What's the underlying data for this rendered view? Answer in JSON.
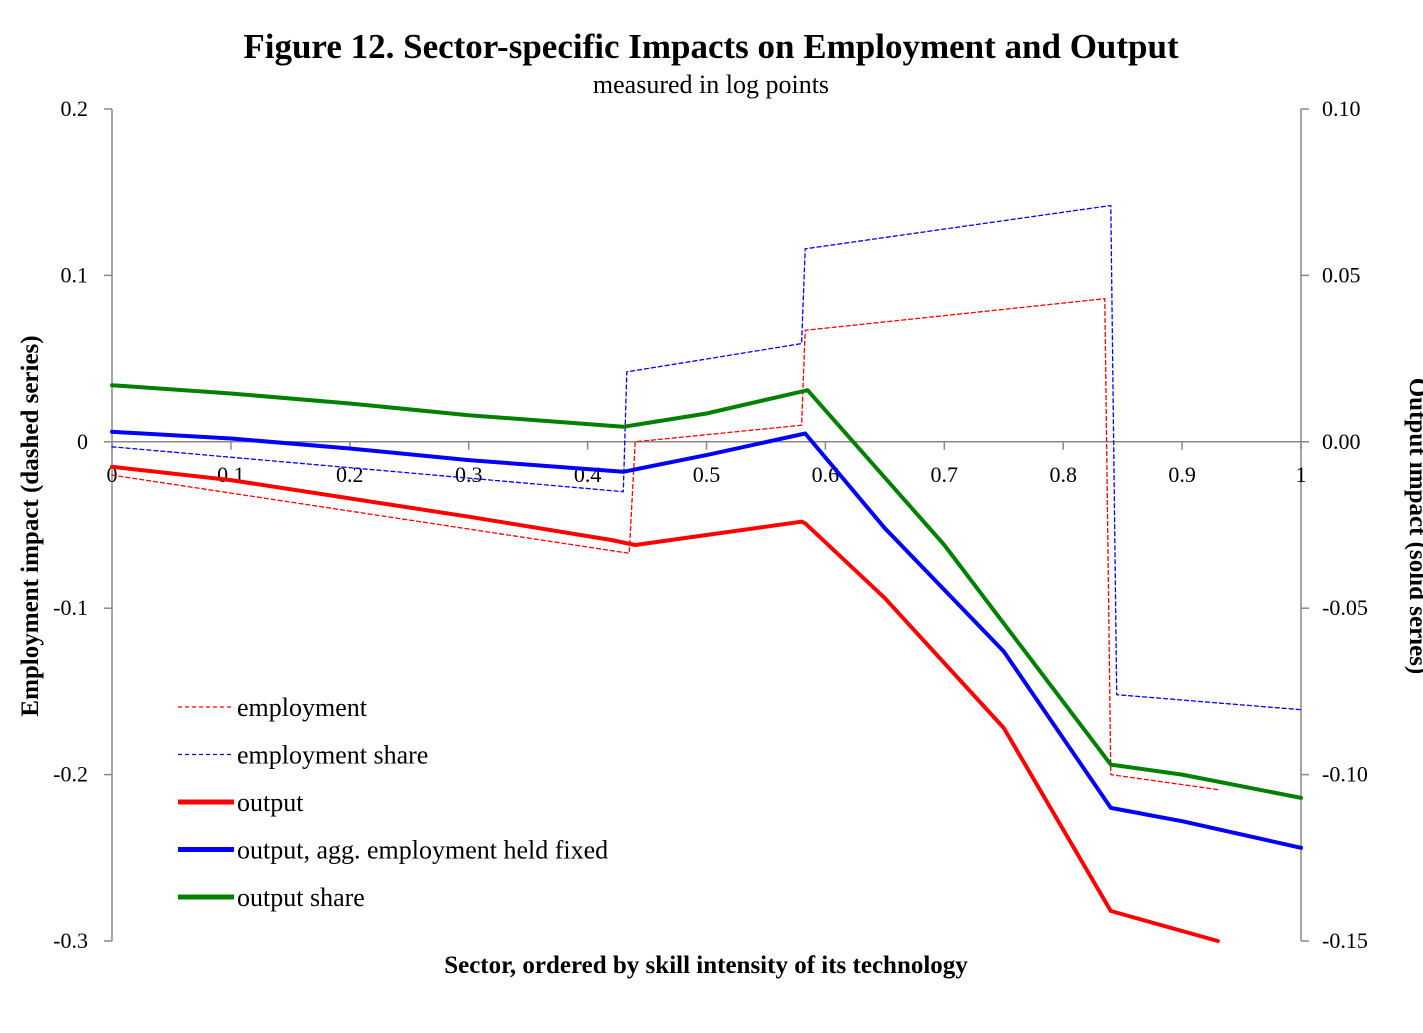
{
  "chart_data": {
    "type": "line",
    "title": "Figure 12.  Sector-specific Impacts on Employment and Output",
    "subtitle": "measured in log points",
    "xlabel": "Sector, ordered by skill intensity of its technology",
    "ylabel_left": "Employment impact (dashed series)",
    "ylabel_right": "Output impact (solid series)",
    "xlim": [
      0,
      1
    ],
    "ylim_left": [
      -0.3,
      0.2
    ],
    "ylim_right": [
      -0.15,
      0.1
    ],
    "x_ticks": [
      "0",
      "0.1",
      "0.2",
      "0.3",
      "0.4",
      "0.5",
      "0.6",
      "0.7",
      "0.8",
      "0.9",
      "1"
    ],
    "y_left_ticks": [
      "-0.3",
      "-0.2",
      "-0.1",
      "0",
      "0.1",
      "0.2"
    ],
    "y_right_ticks": [
      "-0.15",
      "-0.10",
      "-0.05",
      "0.00",
      "0.05",
      "0.10"
    ],
    "legend_position": "bottom-left",
    "grid": false,
    "series": [
      {
        "name": "employment",
        "axis": "left",
        "style": "dashed",
        "color": "#ff0000",
        "points": [
          [
            0,
            -0.02
          ],
          [
            0.435,
            -0.067
          ],
          [
            0.44,
            0.0
          ],
          [
            0.58,
            0.01
          ],
          [
            0.583,
            0.067
          ],
          [
            0.835,
            0.086
          ],
          [
            0.84,
            -0.2
          ],
          [
            0.93,
            -0.209
          ]
        ]
      },
      {
        "name": "employment share",
        "axis": "left",
        "style": "dashed",
        "color": "#0000ff",
        "points": [
          [
            0,
            -0.003
          ],
          [
            0.43,
            -0.03
          ],
          [
            0.433,
            0.042
          ],
          [
            0.58,
            0.059
          ],
          [
            0.583,
            0.116
          ],
          [
            0.84,
            0.142
          ],
          [
            0.845,
            -0.152
          ],
          [
            1.0,
            -0.161
          ]
        ]
      },
      {
        "name": "output",
        "axis": "right",
        "style": "solid",
        "color": "#ff0000",
        "points": [
          [
            0,
            -0.0075
          ],
          [
            0.1,
            -0.0115
          ],
          [
            0.2,
            -0.017
          ],
          [
            0.3,
            -0.0225
          ],
          [
            0.42,
            -0.0295
          ],
          [
            0.44,
            -0.031
          ],
          [
            0.5,
            -0.028
          ],
          [
            0.58,
            -0.024
          ],
          [
            0.583,
            -0.0245
          ],
          [
            0.65,
            -0.047
          ],
          [
            0.75,
            -0.086
          ],
          [
            0.84,
            -0.141
          ],
          [
            0.9,
            -0.147
          ],
          [
            0.93,
            -0.15
          ]
        ]
      },
      {
        "name": "output, agg. employment held fixed",
        "axis": "right",
        "style": "solid",
        "color": "#0000ff",
        "points": [
          [
            0,
            0.003
          ],
          [
            0.1,
            0.001
          ],
          [
            0.2,
            -0.002
          ],
          [
            0.3,
            -0.0055
          ],
          [
            0.43,
            -0.009
          ],
          [
            0.5,
            -0.004
          ],
          [
            0.583,
            0.0025
          ],
          [
            0.65,
            -0.026
          ],
          [
            0.75,
            -0.063
          ],
          [
            0.84,
            -0.11
          ],
          [
            0.9,
            -0.114
          ],
          [
            1.0,
            -0.122
          ]
        ]
      },
      {
        "name": "output share",
        "axis": "right",
        "style": "solid",
        "color": "#008000",
        "points": [
          [
            0,
            0.017
          ],
          [
            0.1,
            0.0145
          ],
          [
            0.2,
            0.0115
          ],
          [
            0.3,
            0.008
          ],
          [
            0.43,
            0.0045
          ],
          [
            0.5,
            0.0085
          ],
          [
            0.585,
            0.0155
          ],
          [
            0.7,
            -0.031
          ],
          [
            0.84,
            -0.097
          ],
          [
            0.9,
            -0.1
          ],
          [
            1.0,
            -0.107
          ]
        ]
      }
    ]
  }
}
